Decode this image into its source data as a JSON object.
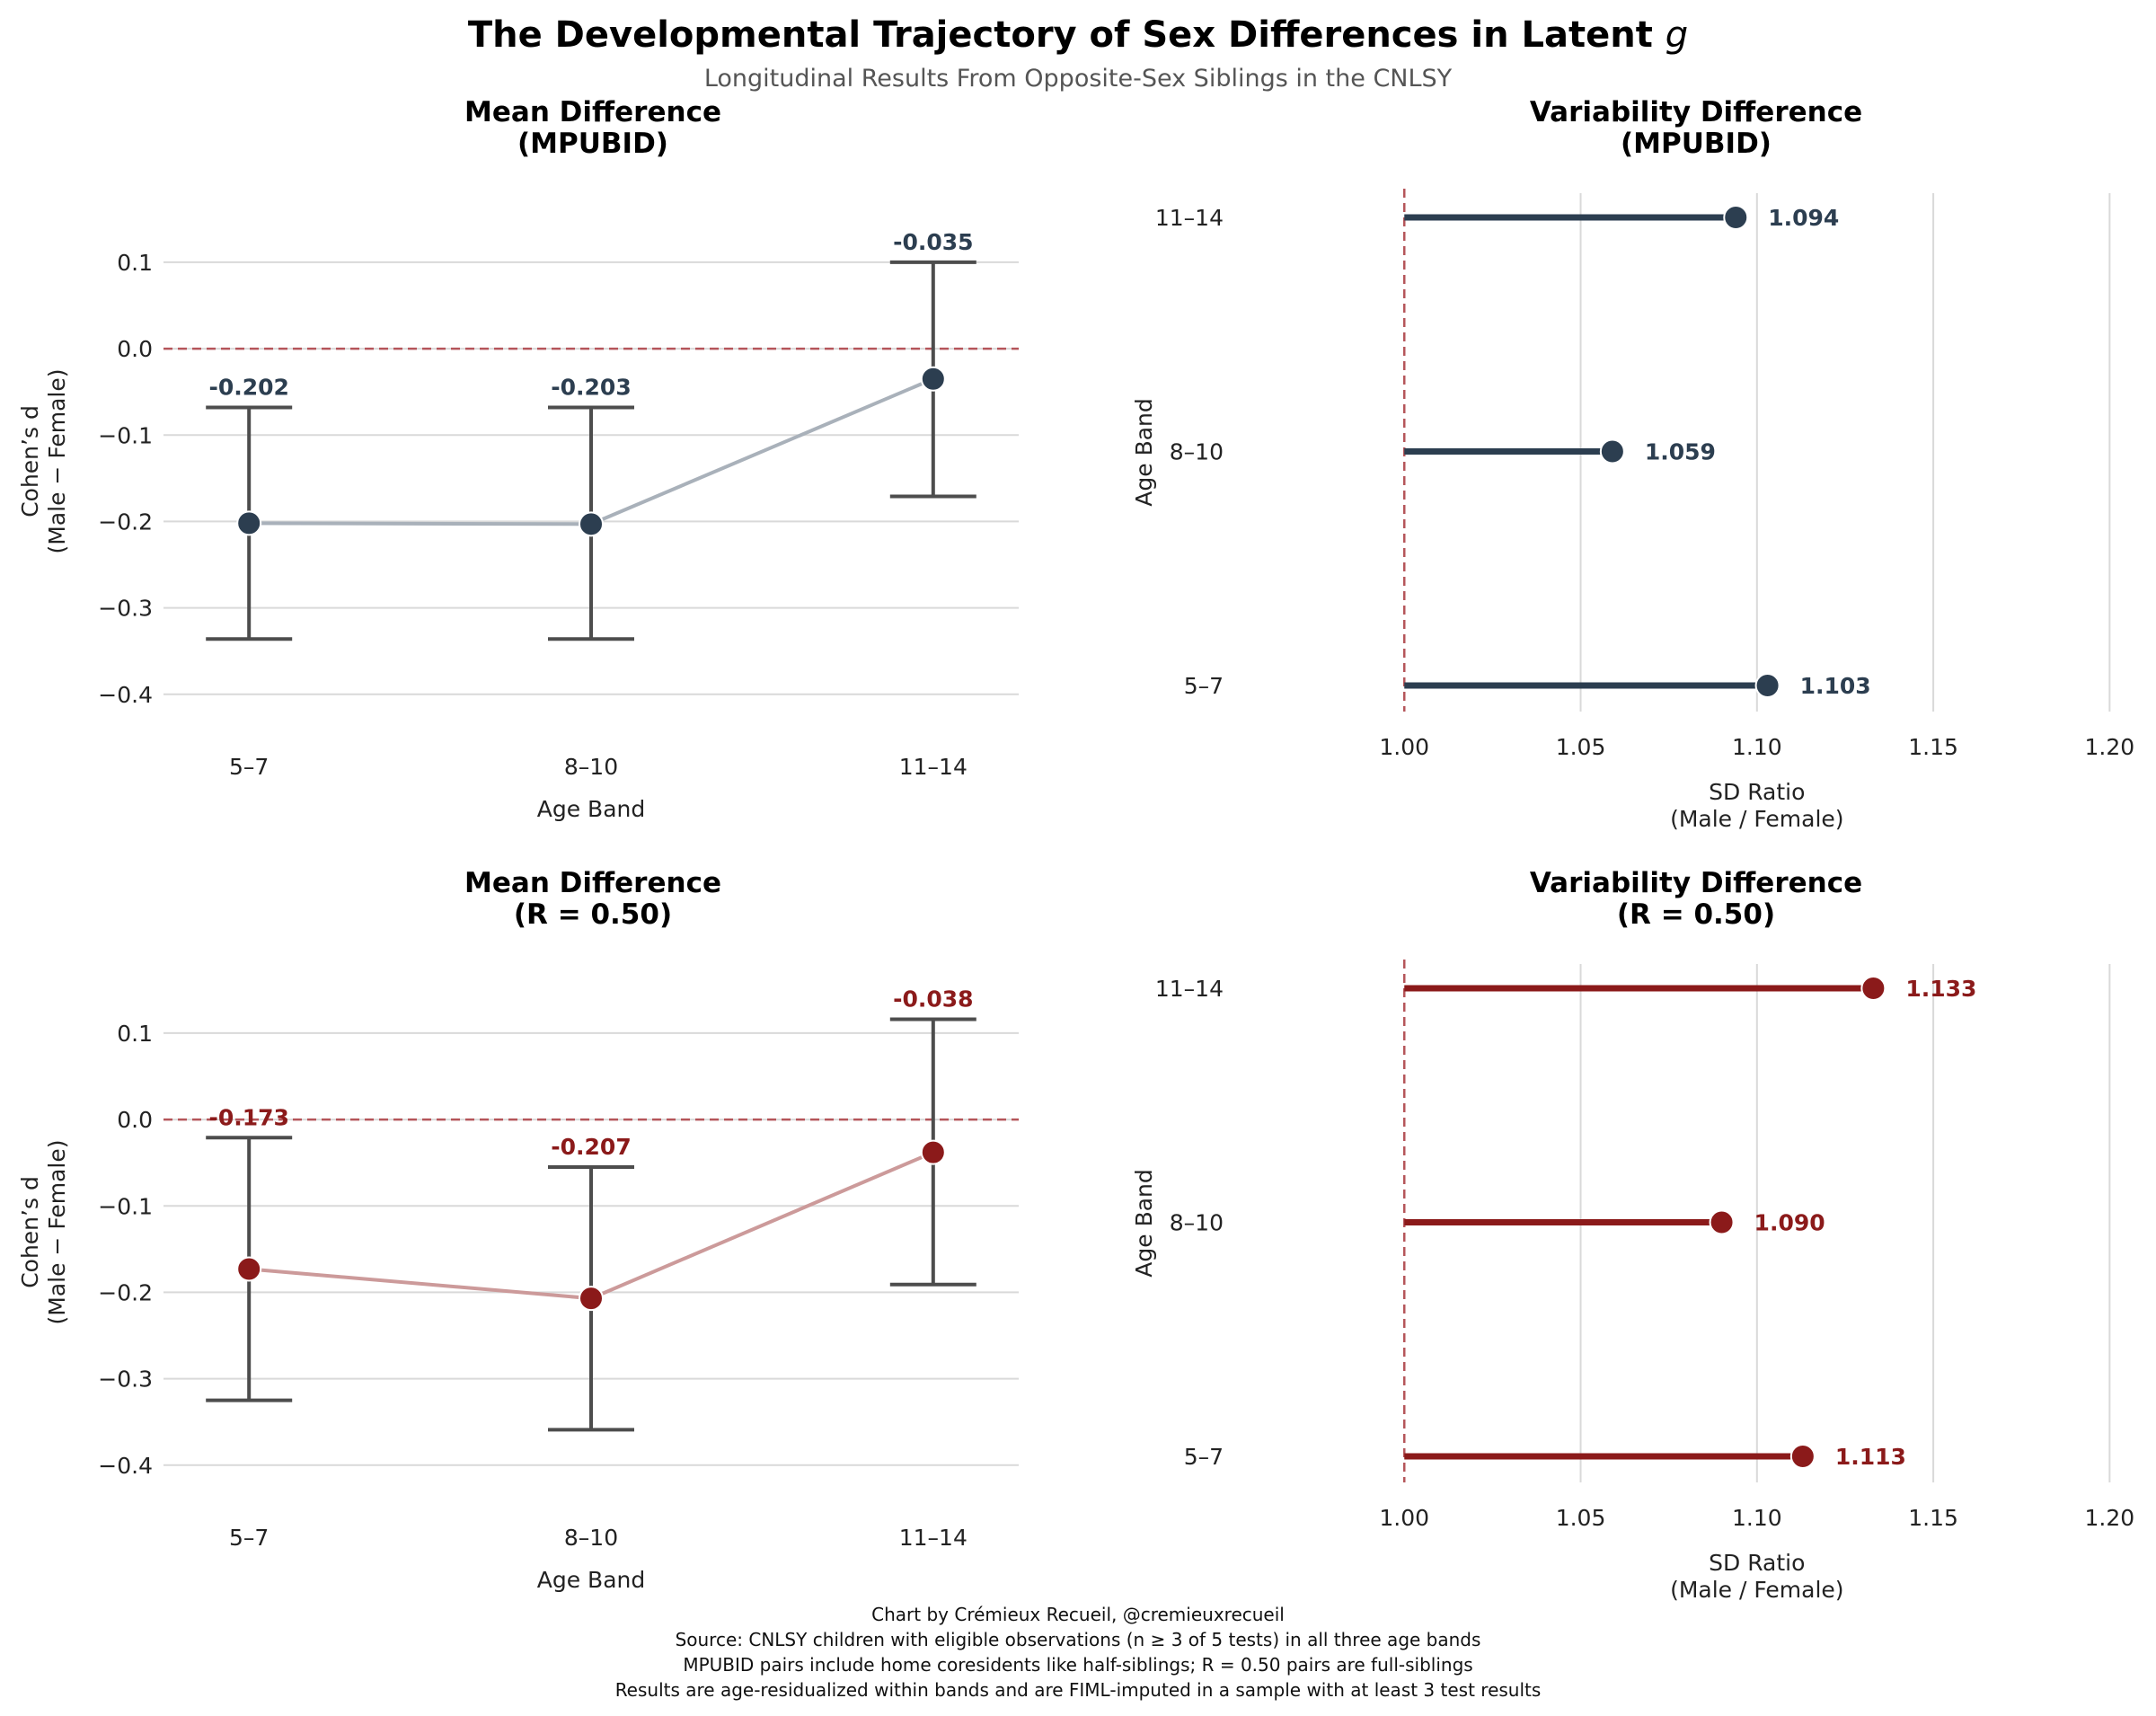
{
  "title": "The Developmental Trajectory of Sex Differences in Latent ",
  "title_italic": "g",
  "subtitle": "Longitudinal Results From Opposite-Sex Siblings in the CNLSY",
  "footer": [
    "Chart by Crémieux Recueil, @cremieuxrecueil",
    "Source: CNLSY children with eligible observations (n ≥ 3 of 5 tests) in all three age bands",
    "MPUBID pairs include home coresidents like half-siblings; R = 0.50 pairs are full-siblings",
    "Results are age-residualized within bands and are FIML-imputed in a sample with at least 3 test results"
  ],
  "colors": {
    "navy": "#2c3e50",
    "line_navy": "#a9b1ba",
    "red": "#8b1a1a",
    "line_red": "#cc9a9a",
    "ref": "#b5555a",
    "err": "#4d4d4d",
    "grid": "#d9d9d9"
  },
  "chart_data": [
    {
      "type": "line",
      "title": [
        "Mean Difference",
        "(MPUBID)"
      ],
      "xlabel": "Age Band",
      "ylabel": [
        "Cohen’s d",
        "(Male − Female)"
      ],
      "categories": [
        "5–7",
        "8–10",
        "11–14"
      ],
      "values": [
        -0.202,
        -0.203,
        -0.035
      ],
      "value_labels": [
        "-0.202",
        "-0.203",
        "-0.035"
      ],
      "ci_low": [
        -0.336,
        -0.336,
        -0.171
      ],
      "ci_high": [
        -0.068,
        -0.068,
        0.1
      ],
      "yticks": [
        0.1,
        0.0,
        -0.1,
        -0.2,
        -0.3,
        -0.4
      ],
      "ytick_labels": [
        "0.1",
        "0.0",
        "−0.1",
        "−0.2",
        "−0.3",
        "−0.4"
      ],
      "ylim": [
        -0.42,
        0.18
      ],
      "reference": 0,
      "color": "navy"
    },
    {
      "type": "lollipop",
      "title": [
        "Variability Difference",
        "(MPUBID)"
      ],
      "xlabel": [
        "SD Ratio",
        "(Male / Female)"
      ],
      "ylabel": "Age Band",
      "categories": [
        "11–14",
        "8–10",
        "5–7"
      ],
      "values": [
        1.094,
        1.059,
        1.103
      ],
      "value_labels": [
        "1.094",
        "1.059",
        "1.103"
      ],
      "xticks": [
        1.0,
        1.05,
        1.1,
        1.15,
        1.2
      ],
      "xtick_labels": [
        "1.00",
        "1.05",
        "1.10",
        "1.15",
        "1.20"
      ],
      "xlim": [
        0.99,
        1.205
      ],
      "reference": 1.0,
      "color": "navy"
    },
    {
      "type": "line",
      "title": [
        "Mean Difference",
        "(R = 0.50)"
      ],
      "xlabel": "Age Band",
      "ylabel": [
        "Cohen’s d",
        "(Male − Female)"
      ],
      "categories": [
        "5–7",
        "8–10",
        "11–14"
      ],
      "values": [
        -0.173,
        -0.207,
        -0.038
      ],
      "value_labels": [
        "-0.173",
        "-0.207",
        "-0.038"
      ],
      "ci_low": [
        -0.325,
        -0.359,
        -0.191
      ],
      "ci_high": [
        -0.021,
        -0.055,
        0.116
      ],
      "yticks": [
        0.1,
        0.0,
        -0.1,
        -0.2,
        -0.3,
        -0.4
      ],
      "ytick_labels": [
        "0.1",
        "0.0",
        "−0.1",
        "−0.2",
        "−0.3",
        "−0.4"
      ],
      "ylim": [
        -0.42,
        0.18
      ],
      "reference": 0,
      "color": "red"
    },
    {
      "type": "lollipop",
      "title": [
        "Variability Difference",
        "(R = 0.50)"
      ],
      "xlabel": [
        "SD Ratio",
        "(Male / Female)"
      ],
      "ylabel": "Age Band",
      "categories": [
        "11–14",
        "8–10",
        "5–7"
      ],
      "values": [
        1.133,
        1.09,
        1.113
      ],
      "value_labels": [
        "1.133",
        "1.090",
        "1.113"
      ],
      "xticks": [
        1.0,
        1.05,
        1.1,
        1.15,
        1.2
      ],
      "xtick_labels": [
        "1.00",
        "1.05",
        "1.10",
        "1.15",
        "1.20"
      ],
      "xlim": [
        0.99,
        1.205
      ],
      "reference": 1.0,
      "color": "red"
    }
  ]
}
